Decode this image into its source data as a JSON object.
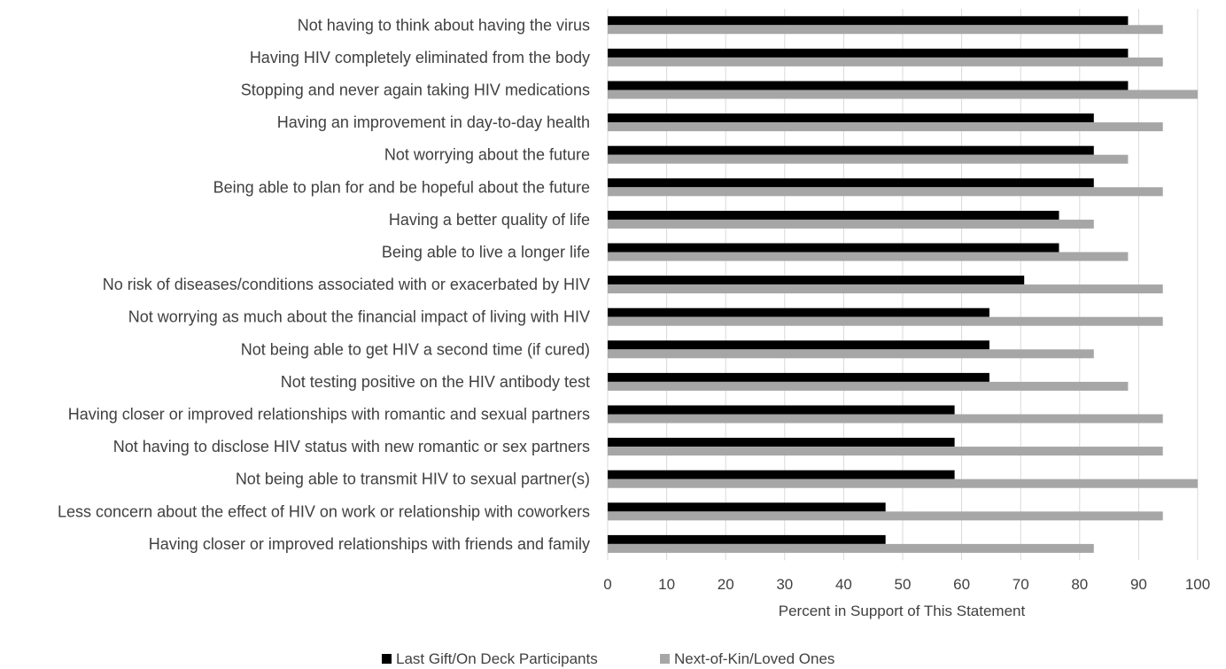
{
  "chart_data": {
    "type": "bar",
    "orientation": "horizontal",
    "categories": [
      "Not having to think about having the virus",
      "Having HIV completely eliminated from the body",
      "Stopping and never again taking HIV medications",
      "Having an improvement in  day-to-day health",
      "Not worrying about the future",
      "Being able to plan for and be hopeful about the future",
      "Having a better quality of life",
      "Being able to live a longer life",
      "No risk of diseases/conditions associated with or exacerbated by HIV",
      "Not worrying as much about the financial impact of living with HIV ",
      "Not being able to get HIV a second time (if cured)",
      "Not testing positive on the HIV antibody test",
      "Having closer or improved relationships with romantic and sexual partners",
      "Not having to disclose HIV status with new romantic or sex partners",
      "Not being able to transmit HIV to sexual partner(s)",
      "Less concern about the effect of HIV on work or relationship with coworkers",
      "Having closer or improved relationships with friends and family"
    ],
    "series": [
      {
        "name": "Last Gift/On Deck Participants",
        "color": "#000000",
        "values": [
          88.2,
          88.2,
          88.2,
          82.4,
          82.4,
          82.4,
          76.5,
          76.5,
          70.6,
          64.7,
          64.7,
          64.7,
          58.8,
          58.8,
          58.8,
          47.1,
          47.1
        ]
      },
      {
        "name": "Next-of-Kin/Loved Ones",
        "color": "#a6a6a6",
        "values": [
          94.1,
          94.1,
          100,
          94.1,
          88.2,
          94.1,
          82.4,
          88.2,
          94.1,
          94.1,
          82.4,
          88.2,
          94.1,
          94.1,
          100,
          94.1,
          82.4
        ]
      }
    ],
    "x_ticks": [
      "0",
      "10",
      "20",
      "30",
      "40",
      "50",
      "60",
      "70",
      "80",
      "90",
      "100"
    ],
    "xlim": [
      0,
      100
    ],
    "xlabel": "Percent in Support of This Statement",
    "ylabel": "",
    "title": "",
    "grid": "vertical",
    "legend": "bottom-center"
  }
}
